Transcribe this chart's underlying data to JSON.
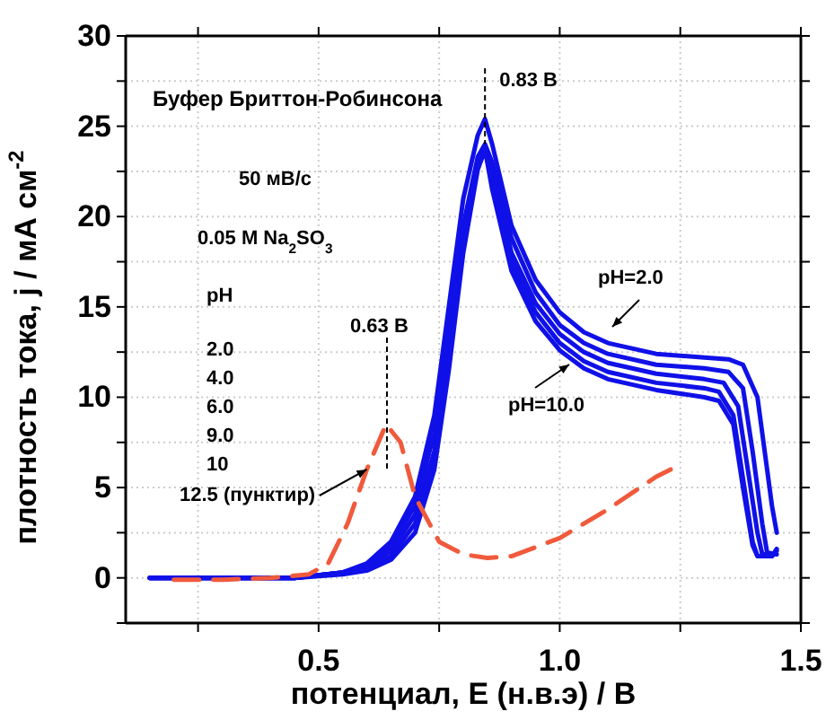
{
  "chart_data": {
    "type": "line",
    "xlabel": "потенциал, E (н.в.э)  /  B",
    "ylabel": "плотность тока, j  /  мА см$^{-2}$",
    "xlim": [
      0.1,
      1.5
    ],
    "ylim": [
      -2.5,
      30
    ],
    "xticks": [
      {
        "value": 0.25,
        "label": null
      },
      0.5,
      {
        "value": 0.75,
        "label": null
      },
      {
        "value": 1.0,
        "label": "1.0"
      },
      {
        "value": 1.25,
        "label": null
      },
      1.5
    ],
    "yticks": [
      {
        "value": -2.5,
        "label": null
      },
      0,
      {
        "value": 2.5,
        "label": null
      },
      5,
      {
        "value": 7.5,
        "label": null
      },
      10,
      {
        "value": 12.5,
        "label": null
      },
      15,
      {
        "value": 17.5,
        "label": null
      },
      20,
      {
        "value": 22.5,
        "label": null
      },
      25,
      {
        "value": 27.5,
        "label": null
      },
      30
    ],
    "grid": true,
    "marker": "none",
    "series": [
      {
        "color": "#1010e8",
        "line_style": "solid",
        "x": [
          0.15,
          0.3,
          0.45,
          0.55,
          0.6,
          0.65,
          0.7,
          0.74,
          0.77,
          0.8,
          0.83,
          0.845,
          0.86,
          0.9,
          0.95,
          1.0,
          1.05,
          1.1,
          1.2,
          1.3,
          1.35,
          1.38,
          1.41,
          1.43,
          1.44,
          1.45
        ],
        "values": [
          0,
          0,
          0,
          0.3,
          0.8,
          2.0,
          4.5,
          9,
          15,
          21,
          24.5,
          25.4,
          24,
          19.5,
          16.5,
          14.7,
          13.6,
          13.0,
          12.4,
          12.2,
          12.1,
          11.8,
          10,
          6,
          4,
          2.5
        ]
      },
      {
        "color": "#1010e8",
        "line_style": "solid",
        "x": [
          0.15,
          0.3,
          0.45,
          0.55,
          0.6,
          0.65,
          0.7,
          0.74,
          0.77,
          0.8,
          0.83,
          0.845,
          0.86,
          0.9,
          0.95,
          1.0,
          1.05,
          1.1,
          1.2,
          1.3,
          1.35,
          1.38,
          1.4,
          1.42,
          1.43,
          1.45
        ],
        "values": [
          0,
          0,
          0,
          0.3,
          0.7,
          1.8,
          4,
          8,
          13.5,
          19.5,
          23.3,
          24.0,
          23,
          18.8,
          15.8,
          14.0,
          13.0,
          12.4,
          11.8,
          11.6,
          11.4,
          10.5,
          7,
          3,
          1.4,
          1.3
        ]
      },
      {
        "color": "#1010e8",
        "line_style": "solid",
        "x": [
          0.15,
          0.3,
          0.45,
          0.55,
          0.6,
          0.65,
          0.7,
          0.74,
          0.77,
          0.8,
          0.83,
          0.845,
          0.86,
          0.9,
          0.95,
          1.0,
          1.05,
          1.1,
          1.2,
          1.3,
          1.34,
          1.37,
          1.39,
          1.41,
          1.42,
          1.44
        ],
        "values": [
          0,
          0,
          0,
          0.3,
          0.6,
          1.5,
          3.5,
          7,
          12.5,
          19,
          23,
          23.9,
          22.5,
          18,
          15.2,
          13.5,
          12.5,
          11.9,
          11.3,
          11.0,
          10.8,
          9.5,
          6,
          2.5,
          1.3,
          1.3
        ]
      },
      {
        "color": "#1010e8",
        "line_style": "solid",
        "x": [
          0.15,
          0.3,
          0.45,
          0.55,
          0.6,
          0.65,
          0.7,
          0.74,
          0.77,
          0.8,
          0.83,
          0.845,
          0.86,
          0.9,
          0.95,
          1.0,
          1.05,
          1.1,
          1.2,
          1.3,
          1.33,
          1.36,
          1.38,
          1.4,
          1.41,
          1.44,
          1.45
        ],
        "values": [
          0,
          0,
          0,
          0.3,
          0.5,
          1.2,
          3,
          6.5,
          12,
          18.5,
          22.8,
          23.8,
          22,
          17.5,
          14.7,
          13.0,
          12.0,
          11.4,
          10.8,
          10.5,
          10.3,
          9,
          5.5,
          2,
          1.2,
          1.2,
          1.6
        ]
      },
      {
        "color": "#1010e8",
        "line_style": "solid",
        "x": [
          0.15,
          0.3,
          0.45,
          0.55,
          0.6,
          0.65,
          0.7,
          0.74,
          0.77,
          0.8,
          0.83,
          0.845,
          0.86,
          0.9,
          0.95,
          1.0,
          1.05,
          1.1,
          1.2,
          1.3,
          1.33,
          1.36,
          1.38,
          1.4,
          1.41,
          1.44,
          1.45
        ],
        "values": [
          0,
          0,
          0,
          0.2,
          0.4,
          1.0,
          2.5,
          6,
          11.5,
          18,
          22.6,
          23.7,
          21.5,
          17,
          14.2,
          12.6,
          11.6,
          11.0,
          10.4,
          10.0,
          9.8,
          8.5,
          5,
          1.8,
          1.2,
          1.2,
          1.5
        ]
      },
      {
        "color": "#f05a3c",
        "line_style": "dashed",
        "x": [
          0.2,
          0.3,
          0.4,
          0.48,
          0.52,
          0.56,
          0.6,
          0.64,
          0.67,
          0.7,
          0.75,
          0.8,
          0.85,
          0.9,
          1.0,
          1.1,
          1.2,
          1.23
        ],
        "values": [
          -0.1,
          -0.1,
          0,
          0.2,
          0.8,
          3,
          6,
          8.5,
          7.5,
          4.5,
          2.0,
          1.3,
          1.1,
          1.2,
          2.2,
          3.8,
          5.6,
          6.0
        ]
      }
    ],
    "annotations": [
      "Буфер Бриттон-Робинсона",
      "50 мВ/с",
      "0.05 M Na$_{2}$SO$_{3}$",
      "pH",
      "2.0",
      "4.0",
      "6.0",
      "9.0",
      "10",
      "0.63 B",
      "pH=2.0",
      "pH=10.0",
      {
        "text": "12.5 (пунктир)",
        "x": 0.6,
        "y": 6
      },
      {
        "text": "0.83 B",
        "x": 0.845,
        "y": 25.4
      }
    ]
  }
}
